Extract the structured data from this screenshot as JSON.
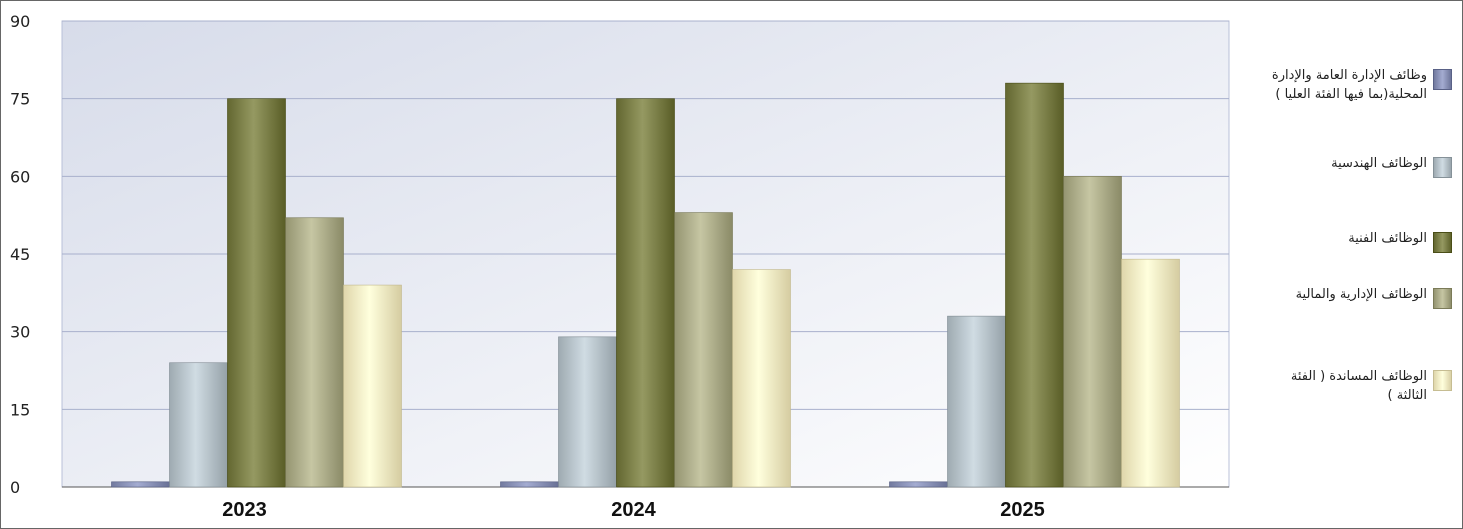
{
  "chart_data": {
    "type": "bar",
    "categories": [
      "2023",
      "2024",
      "2025"
    ],
    "ylim": [
      0,
      90
    ],
    "yticks": [
      "0",
      "15",
      "30",
      "45",
      "60",
      "75",
      "90"
    ],
    "grid": true,
    "legend_position": "right",
    "series": [
      {
        "name": "وظائف الإدارة العامة والإدارة المحلية(بما فيها الفئة العليا )",
        "color": "#8b93b8",
        "values": [
          1,
          1,
          1
        ]
      },
      {
        "name": "الوظائف الهندسية",
        "color": "#b7c3ca",
        "values": [
          24,
          29,
          33
        ]
      },
      {
        "name": "الوظائف الفنية",
        "color": "#7c8049",
        "values": [
          75,
          75,
          78
        ]
      },
      {
        "name": "الوظائف الإدارية والمالية",
        "color": "#adad8a",
        "values": [
          52,
          53,
          60
        ]
      },
      {
        "name": "الوظائف المساندة ( الفئة الثالثة )",
        "color": "#f8efc4",
        "values": [
          39,
          42,
          44
        ]
      }
    ]
  }
}
